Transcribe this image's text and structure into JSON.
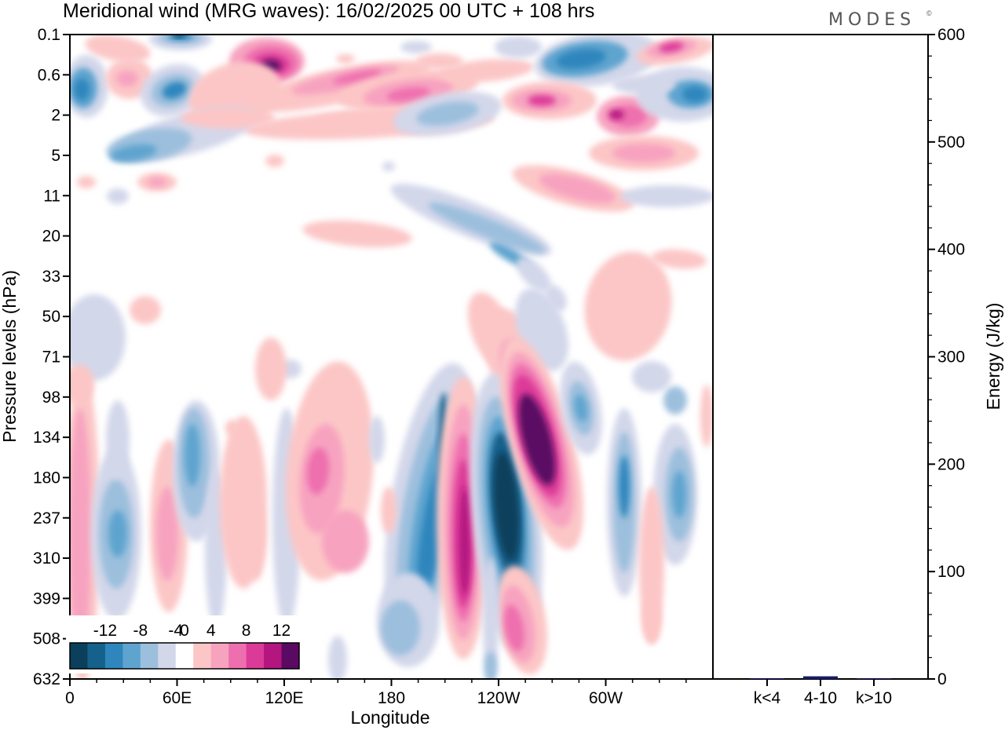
{
  "header": {
    "title": "Meridional wind (MRG waves):  16/02/2025  00 UTC  + 108 hrs",
    "logo": "MODES",
    "logo_mark": "©"
  },
  "chart_data": [
    {
      "type": "heatmap",
      "title": "Meridional wind (MRG waves):  16/02/2025  00 UTC  + 108 hrs",
      "xlabel": "Longitude",
      "ylabel": "Pressure levels (hPa)",
      "x_ticks": [
        "0",
        "60E",
        "120E",
        "180",
        "120W",
        "60W"
      ],
      "x_tick_degrees": [
        0,
        60,
        120,
        180,
        240,
        300
      ],
      "x_range_degrees": [
        0,
        360
      ],
      "y_ticks": [
        "0.1",
        "0.6",
        "2",
        "5",
        "11",
        "20",
        "33",
        "50",
        "71",
        "98",
        "134",
        "180",
        "237",
        "310",
        "399",
        "508",
        "632"
      ],
      "y_scale": "pressure levels (top 0.1 hPa, bottom 632 hPa)",
      "colorbar": {
        "labels": [
          "-12",
          "-8",
          "-4",
          "0",
          "4",
          "8",
          "12"
        ],
        "levels": [
          -14,
          -12,
          -10,
          -8,
          -6,
          -4,
          -2,
          2,
          4,
          6,
          8,
          10,
          12,
          14
        ],
        "colors": [
          "#0b3f5c",
          "#15618c",
          "#2f86bd",
          "#5ea4cf",
          "#9cbfdd",
          "#d3d7ea",
          "#ffffff",
          "#fcc6c6",
          "#f7a3c0",
          "#ee6fae",
          "#dc3a98",
          "#b3167f",
          "#5a0a63"
        ],
        "placement": "bottom-left"
      },
      "features": [
        {
          "lon": 240,
          "level": 237,
          "value": -14
        },
        {
          "lon": 220,
          "level": 237,
          "value": 12
        },
        {
          "lon": 263,
          "level": 134,
          "value": 14
        },
        {
          "lon": 206,
          "level": 180,
          "value": -10
        },
        {
          "lon": 112,
          "level": 0.4,
          "value": 12
        },
        {
          "lon": 62,
          "level": 0.1,
          "value": -12
        },
        {
          "lon": 290,
          "level": 0.4,
          "value": -10
        },
        {
          "lon": 335,
          "level": 0.3,
          "value": 10
        },
        {
          "lon": 140,
          "level": 180,
          "value": 6
        },
        {
          "lon": 15,
          "level": 237,
          "value": 6
        }
      ]
    },
    {
      "type": "bar",
      "categories": [
        "k<4",
        "4-10",
        "k>10"
      ],
      "values": [
        0.6,
        2.5,
        0.3
      ],
      "ylabel": "Energy (J/kg)",
      "ylim": [
        0,
        600
      ],
      "y_ticks": [
        "0",
        "100",
        "200",
        "300",
        "400",
        "500",
        "600"
      ],
      "y_tick_values": [
        0,
        100,
        200,
        300,
        400,
        500,
        600
      ],
      "bar_color": "#1a1a6e"
    }
  ]
}
